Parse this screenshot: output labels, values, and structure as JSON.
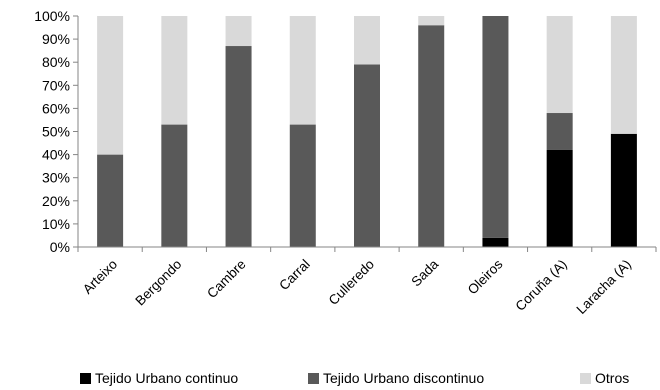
{
  "chart_data": {
    "type": "bar",
    "stacked": true,
    "percent": true,
    "categories": [
      "Arteixo",
      "Bergondo",
      "Cambre",
      "Carral",
      "Culleredo",
      "Sada",
      "Oleiros",
      "Coruña (A)",
      "Laracha (A)"
    ],
    "series": [
      {
        "name": "Tejido Urbano continuo",
        "color": "#000000",
        "values": [
          0,
          0,
          0,
          0,
          0,
          0,
          4,
          42,
          49
        ]
      },
      {
        "name": "Tejido Urbano discontinuo",
        "color": "#595959",
        "values": [
          40,
          53,
          87,
          53,
          79,
          96,
          96,
          16,
          0
        ]
      },
      {
        "name": "Otros",
        "color": "#d9d9d9",
        "values": [
          60,
          47,
          13,
          47,
          21,
          4,
          0,
          42,
          51
        ]
      }
    ],
    "ylim": [
      0,
      100
    ],
    "yticks": [
      "0%",
      "10%",
      "20%",
      "30%",
      "40%",
      "50%",
      "60%",
      "70%",
      "80%",
      "90%",
      "100%"
    ],
    "grid": false,
    "legend_position": "bottom"
  }
}
